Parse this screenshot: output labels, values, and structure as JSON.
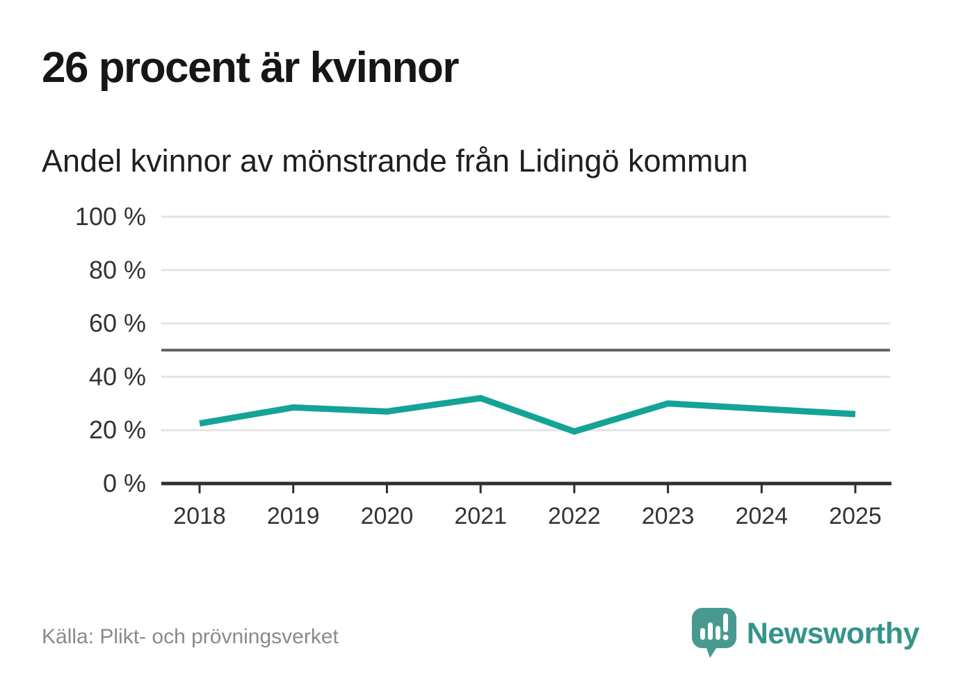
{
  "header": {
    "title": "26 procent är kvinnor",
    "subtitle": "Andel kvinnor av mönstrande från Lidingö kommun"
  },
  "chart_data": {
    "type": "line",
    "categories": [
      "2018",
      "2019",
      "2020",
      "2021",
      "2022",
      "2023",
      "2024",
      "2025"
    ],
    "series": [
      {
        "name": "Andel kvinnor av mönstrande",
        "values": [
          22.5,
          28.5,
          27,
          32,
          19.5,
          30,
          28,
          26
        ]
      }
    ],
    "title": "26 procent är kvinnor",
    "subtitle": "Andel kvinnor av mönstrande från Lidingö kommun",
    "xlabel": "",
    "ylabel": "",
    "ylim": [
      0,
      100
    ],
    "yticks": [
      0,
      20,
      40,
      60,
      80,
      100
    ],
    "ytick_suffix": " %",
    "reference_line": 50,
    "grid": "horizontal",
    "legend": "none",
    "colors": {
      "line": "#14a396",
      "reference_line": "#666666",
      "gridline": "#e4e4e4",
      "axis": "#2f2f2f",
      "tick_label": "#333333"
    }
  },
  "footer": {
    "source": "Källa: Plikt- och prövningsverket",
    "brand": "Newsworthy",
    "brand_color": "#35948a",
    "brand_icon": "newsworthy-speech-bubble-chart-icon"
  }
}
